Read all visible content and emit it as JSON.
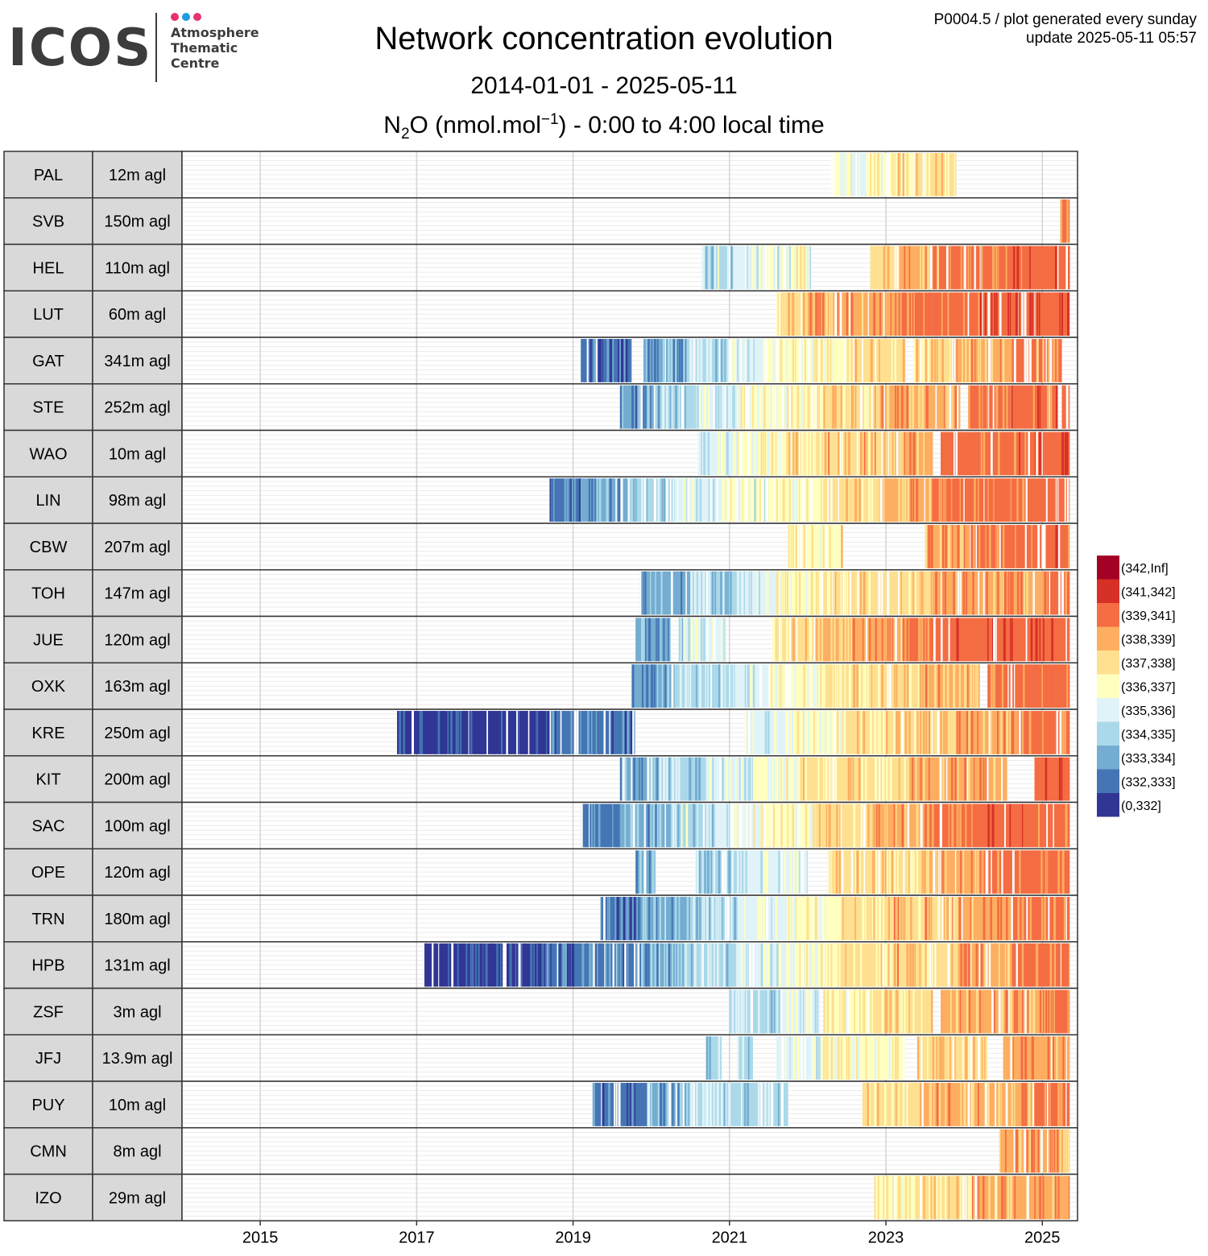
{
  "logo": {
    "word": "ICOS",
    "lines": [
      "Atmosphere",
      "Thematic",
      "Centre"
    ],
    "dot_colors": [
      "#e8336d",
      "#1e9ae0",
      "#e8336d"
    ]
  },
  "header": {
    "title": "Network concentration evolution",
    "subtitle": "2014-01-01 - 2025-05-11",
    "species_main": "N",
    "species_sub": "2",
    "species_unit": "O (nmol.mol",
    "species_sup": "−1",
    "species_tail": ") - 0:00 to 4:00 local time",
    "meta_line1": "P0004.5 / plot generated every sunday",
    "meta_line2": "update  2025-05-11 05:57"
  },
  "chart_data": {
    "type": "heatmap",
    "title": "Network concentration evolution",
    "subtitle": "2014-01-01 - 2025-05-11",
    "xlim": [
      2014.0,
      2025.45
    ],
    "x_ticks": [
      2015,
      2017,
      2019,
      2021,
      2023,
      2025
    ],
    "legend_position": "right",
    "bins": [
      {
        "label": "(342,Inf]",
        "color": "#a50026"
      },
      {
        "label": "(341,342]",
        "color": "#d73027"
      },
      {
        "label": "(339,341]",
        "color": "#f46d43"
      },
      {
        "label": "(338,339]",
        "color": "#fdae61"
      },
      {
        "label": "(337,338]",
        "color": "#fee090"
      },
      {
        "label": "(336,337]",
        "color": "#ffffbf"
      },
      {
        "label": "(335,336]",
        "color": "#e0f3f8"
      },
      {
        "label": "(334,335]",
        "color": "#abd9e9"
      },
      {
        "label": "(333,334]",
        "color": "#74add1"
      },
      {
        "label": "(332,333]",
        "color": "#4575b4"
      },
      {
        "label": "(0,332]",
        "color": "#313695"
      }
    ],
    "stations": [
      {
        "code": "PAL",
        "height": "12m agl",
        "segments": [
          [
            2022.3,
            2022.55,
            336.6
          ],
          [
            2022.55,
            2022.75,
            335.8
          ],
          [
            2022.75,
            2023.15,
            336.9
          ],
          [
            2023.15,
            2023.5,
            337.5
          ],
          [
            2023.5,
            2023.9,
            337.2
          ]
        ]
      },
      {
        "code": "SVB",
        "height": "150m agl",
        "segments": [
          [
            2025.23,
            2025.35,
            339.8
          ]
        ]
      },
      {
        "code": "HEL",
        "height": "110m agl",
        "segments": [
          [
            2020.65,
            2021.05,
            335.0
          ],
          [
            2021.05,
            2021.45,
            335.6
          ],
          [
            2021.45,
            2022.05,
            336.1
          ],
          [
            2022.8,
            2023.2,
            337.8
          ],
          [
            2023.2,
            2023.6,
            338.3
          ],
          [
            2023.6,
            2024.0,
            339.1
          ],
          [
            2024.0,
            2024.55,
            339.6
          ],
          [
            2024.55,
            2025.35,
            340.2
          ]
        ]
      },
      {
        "code": "LUT",
        "height": "60m agl",
        "segments": [
          [
            2021.6,
            2022.0,
            337.8
          ],
          [
            2022.0,
            2022.55,
            338.6
          ],
          [
            2022.55,
            2023.1,
            338.9
          ],
          [
            2023.1,
            2023.6,
            339.3
          ],
          [
            2023.6,
            2024.2,
            339.8
          ],
          [
            2024.2,
            2024.7,
            340.6
          ],
          [
            2024.7,
            2025.35,
            340.8
          ]
        ]
      },
      {
        "code": "GAT",
        "height": "341m agl",
        "segments": [
          [
            2019.1,
            2019.75,
            332.4
          ],
          [
            2019.9,
            2020.45,
            333.6
          ],
          [
            2020.45,
            2020.95,
            334.5
          ],
          [
            2020.95,
            2021.45,
            335.4
          ],
          [
            2021.45,
            2022.05,
            336.3
          ],
          [
            2022.05,
            2022.6,
            336.9
          ],
          [
            2022.6,
            2023.25,
            337.3
          ],
          [
            2023.35,
            2023.9,
            337.7
          ],
          [
            2023.9,
            2024.6,
            338.4
          ],
          [
            2024.6,
            2025.25,
            339.2
          ]
        ]
      },
      {
        "code": "STE",
        "height": "252m agl",
        "segments": [
          [
            2019.6,
            2020.1,
            333.2
          ],
          [
            2020.1,
            2020.55,
            334.2
          ],
          [
            2020.55,
            2021.05,
            335.1
          ],
          [
            2021.05,
            2021.6,
            336.1
          ],
          [
            2021.6,
            2022.2,
            336.8
          ],
          [
            2022.2,
            2022.9,
            337.5
          ],
          [
            2022.9,
            2023.95,
            338.3
          ],
          [
            2024.05,
            2024.6,
            339.4
          ],
          [
            2024.6,
            2025.2,
            339.9
          ],
          [
            2025.25,
            2025.35,
            340.2
          ]
        ]
      },
      {
        "code": "WAO",
        "height": "10m agl",
        "segments": [
          [
            2020.6,
            2021.1,
            335.4
          ],
          [
            2021.1,
            2021.7,
            336.4
          ],
          [
            2021.7,
            2022.2,
            337.3
          ],
          [
            2022.2,
            2023.0,
            338.0
          ],
          [
            2023.0,
            2023.6,
            338.6
          ],
          [
            2023.7,
            2024.3,
            339.4
          ],
          [
            2024.3,
            2024.9,
            339.9
          ],
          [
            2024.9,
            2025.35,
            340.6
          ]
        ]
      },
      {
        "code": "LIN",
        "height": "98m agl",
        "segments": [
          [
            2018.7,
            2019.1,
            332.6
          ],
          [
            2019.1,
            2019.7,
            333.4
          ],
          [
            2019.7,
            2020.3,
            334.3
          ],
          [
            2020.3,
            2020.9,
            335.4
          ],
          [
            2020.9,
            2021.5,
            336.1
          ],
          [
            2021.5,
            2022.2,
            336.8
          ],
          [
            2022.2,
            2022.9,
            337.6
          ],
          [
            2022.9,
            2023.6,
            338.4
          ],
          [
            2023.6,
            2024.4,
            339.3
          ],
          [
            2024.4,
            2025.35,
            339.9
          ]
        ]
      },
      {
        "code": "CBW",
        "height": "207m agl",
        "segments": [
          [
            2021.75,
            2022.45,
            336.9
          ],
          [
            2023.5,
            2024.0,
            338.4
          ],
          [
            2024.0,
            2024.6,
            339.4
          ],
          [
            2024.6,
            2025.35,
            339.9
          ]
        ]
      },
      {
        "code": "TOH",
        "height": "147m agl",
        "segments": [
          [
            2019.85,
            2020.5,
            333.7
          ],
          [
            2020.5,
            2021.1,
            334.6
          ],
          [
            2021.1,
            2021.6,
            335.5
          ],
          [
            2021.6,
            2022.2,
            336.6
          ],
          [
            2022.2,
            2022.9,
            337.4
          ],
          [
            2022.9,
            2023.6,
            337.9
          ],
          [
            2023.6,
            2024.4,
            338.4
          ],
          [
            2024.4,
            2025.0,
            339.0
          ],
          [
            2025.0,
            2025.35,
            339.5
          ]
        ]
      },
      {
        "code": "JUE",
        "height": "120m agl",
        "segments": [
          [
            2019.8,
            2020.25,
            333.4
          ],
          [
            2020.35,
            2020.8,
            335.2
          ],
          [
            2020.8,
            2020.95,
            335.6
          ],
          [
            2021.55,
            2022.1,
            337.6
          ],
          [
            2022.1,
            2022.7,
            338.4
          ],
          [
            2022.7,
            2023.3,
            339.0
          ],
          [
            2023.3,
            2023.9,
            339.5
          ],
          [
            2023.9,
            2024.5,
            340.2
          ],
          [
            2024.5,
            2025.35,
            340.8
          ]
        ]
      },
      {
        "code": "OXK",
        "height": "163m agl",
        "segments": [
          [
            2019.75,
            2020.3,
            333.4
          ],
          [
            2020.3,
            2020.95,
            334.5
          ],
          [
            2020.95,
            2021.5,
            335.4
          ],
          [
            2021.5,
            2022.2,
            336.4
          ],
          [
            2022.2,
            2022.9,
            337.1
          ],
          [
            2022.9,
            2023.5,
            337.6
          ],
          [
            2023.5,
            2024.2,
            338.2
          ],
          [
            2024.3,
            2024.85,
            339.4
          ],
          [
            2024.85,
            2025.35,
            339.7
          ]
        ]
      },
      {
        "code": "KRE",
        "height": "250m agl",
        "segments": [
          [
            2016.75,
            2017.5,
            331.4
          ],
          [
            2017.5,
            2018.1,
            331.8
          ],
          [
            2018.1,
            2018.7,
            331.6
          ],
          [
            2018.7,
            2019.8,
            332.5
          ],
          [
            2021.2,
            2021.7,
            335.3
          ],
          [
            2021.7,
            2022.4,
            336.4
          ],
          [
            2022.4,
            2023.0,
            337.2
          ],
          [
            2023.0,
            2023.9,
            337.9
          ],
          [
            2023.9,
            2024.6,
            338.8
          ],
          [
            2024.6,
            2025.35,
            339.4
          ]
        ]
      },
      {
        "code": "KIT",
        "height": "200m agl",
        "segments": [
          [
            2019.6,
            2020.1,
            333.5
          ],
          [
            2020.1,
            2020.7,
            334.4
          ],
          [
            2020.7,
            2021.3,
            335.3
          ],
          [
            2021.3,
            2021.9,
            336.2
          ],
          [
            2021.9,
            2022.6,
            337.2
          ],
          [
            2022.6,
            2023.3,
            337.8
          ],
          [
            2023.3,
            2024.0,
            338.3
          ],
          [
            2024.0,
            2024.55,
            338.8
          ],
          [
            2024.9,
            2025.35,
            340.3
          ]
        ]
      },
      {
        "code": "SAC",
        "height": "100m agl",
        "segments": [
          [
            2019.1,
            2019.6,
            332.6
          ],
          [
            2019.6,
            2020.25,
            333.4
          ],
          [
            2020.25,
            2020.8,
            334.9
          ],
          [
            2020.8,
            2021.4,
            335.9
          ],
          [
            2021.4,
            2022.1,
            336.8
          ],
          [
            2022.1,
            2022.8,
            337.6
          ],
          [
            2022.8,
            2023.6,
            338.5
          ],
          [
            2023.6,
            2024.3,
            339.3
          ],
          [
            2024.3,
            2025.35,
            340.2
          ]
        ]
      },
      {
        "code": "OPE",
        "height": "120m agl",
        "segments": [
          [
            2019.8,
            2020.05,
            333.3
          ],
          [
            2020.55,
            2021.1,
            334.6
          ],
          [
            2021.1,
            2022.0,
            335.6
          ],
          [
            2022.25,
            2022.9,
            337.2
          ],
          [
            2022.9,
            2023.6,
            337.8
          ],
          [
            2023.6,
            2024.3,
            338.7
          ],
          [
            2024.3,
            2025.35,
            339.6
          ]
        ]
      },
      {
        "code": "TRN",
        "height": "180m agl",
        "segments": [
          [
            2019.35,
            2019.85,
            332.7
          ],
          [
            2019.85,
            2020.5,
            333.6
          ],
          [
            2020.5,
            2021.1,
            334.6
          ],
          [
            2021.1,
            2021.7,
            335.6
          ],
          [
            2021.7,
            2022.4,
            336.5
          ],
          [
            2022.4,
            2023.1,
            337.3
          ],
          [
            2023.1,
            2023.9,
            338.0
          ],
          [
            2023.9,
            2024.6,
            339.0
          ],
          [
            2024.6,
            2025.35,
            339.6
          ]
        ]
      },
      {
        "code": "HPB",
        "height": "131m agl",
        "segments": [
          [
            2017.1,
            2018.1,
            331.5
          ],
          [
            2018.15,
            2018.6,
            331.9
          ],
          [
            2018.6,
            2019.3,
            332.4
          ],
          [
            2019.3,
            2019.9,
            332.9
          ],
          [
            2019.9,
            2020.4,
            333.6
          ],
          [
            2020.4,
            2021.1,
            334.7
          ],
          [
            2021.1,
            2021.7,
            335.6
          ],
          [
            2021.7,
            2022.4,
            336.4
          ],
          [
            2022.4,
            2023.1,
            337.2
          ],
          [
            2023.1,
            2023.9,
            337.9
          ],
          [
            2023.9,
            2024.6,
            338.6
          ],
          [
            2024.6,
            2025.35,
            339.3
          ]
        ]
      },
      {
        "code": "ZSF",
        "height": "3m agl",
        "segments": [
          [
            2021.0,
            2021.65,
            334.6
          ],
          [
            2021.65,
            2022.15,
            335.5
          ],
          [
            2022.2,
            2022.85,
            336.6
          ],
          [
            2022.85,
            2023.6,
            337.4
          ],
          [
            2023.7,
            2024.4,
            338.3
          ],
          [
            2024.4,
            2025.15,
            338.9
          ],
          [
            2025.15,
            2025.35,
            339.4
          ]
        ]
      },
      {
        "code": "JFJ",
        "height": "13.9m agl",
        "segments": [
          [
            2020.7,
            2020.9,
            334.7
          ],
          [
            2021.1,
            2021.3,
            334.6
          ],
          [
            2021.6,
            2022.2,
            335.7
          ],
          [
            2022.2,
            2023.25,
            336.5
          ],
          [
            2023.4,
            2024.3,
            337.8
          ],
          [
            2024.5,
            2025.35,
            338.9
          ]
        ]
      },
      {
        "code": "PUY",
        "height": "10m agl",
        "segments": [
          [
            2019.25,
            2019.95,
            332.7
          ],
          [
            2019.95,
            2020.5,
            333.8
          ],
          [
            2020.5,
            2021.75,
            334.7
          ],
          [
            2022.7,
            2023.4,
            337.6
          ],
          [
            2023.4,
            2024.2,
            338.1
          ],
          [
            2024.2,
            2024.9,
            338.6
          ],
          [
            2024.9,
            2025.35,
            339.4
          ]
        ]
      },
      {
        "code": "CMN",
        "height": "8m agl",
        "segments": [
          [
            2024.45,
            2025.35,
            338.7
          ]
        ]
      },
      {
        "code": "IZO",
        "height": "29m agl",
        "segments": [
          [
            2022.85,
            2023.4,
            336.9
          ],
          [
            2023.4,
            2024.1,
            337.5
          ],
          [
            2024.1,
            2024.8,
            338.1
          ],
          [
            2024.8,
            2025.35,
            338.6
          ]
        ]
      }
    ]
  }
}
